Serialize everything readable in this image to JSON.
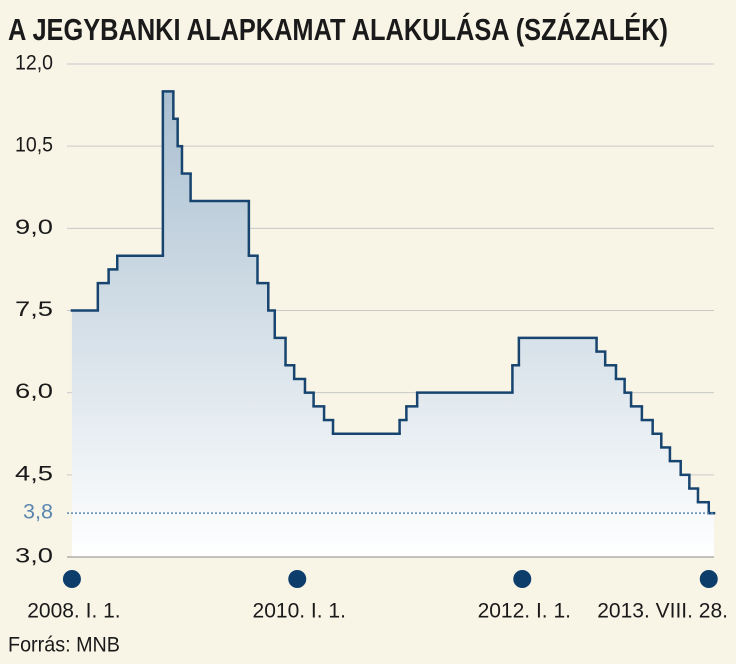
{
  "chart_data": {
    "type": "step",
    "title": "A JEGYBANKI ALAPKAMAT ALAKULÁSA (SZÁZALÉK)",
    "source": "Forrás: MNB",
    "xlim": [
      "2007-12-16",
      "2013-09-14"
    ],
    "xticks": [
      {
        "value": "2008-01-01",
        "label": "2008. I. 1."
      },
      {
        "value": "2010-01-01",
        "label": "2010. I. 1."
      },
      {
        "value": "2012-01-01",
        "label": "2012. I. 1."
      },
      {
        "value": "2013-08-28",
        "label": "2013. VIII. 28."
      }
    ],
    "ylim": [
      3,
      12
    ],
    "yticks": [
      {
        "value": 3,
        "label": "3,0"
      },
      {
        "value": 4.5,
        "label": "4,5"
      },
      {
        "value": 6,
        "label": "6,0"
      },
      {
        "value": 7.5,
        "label": "7,5"
      },
      {
        "value": 9,
        "label": "9,0"
      },
      {
        "value": 10.5,
        "label": "10,5"
      },
      {
        "value": 12,
        "label": "12,0"
      }
    ],
    "reference_line": {
      "value": 3.8,
      "label": "3,8",
      "color": "#5b86b0"
    },
    "grid": true,
    "series": [
      {
        "color": "#17456f",
        "x": [
          "2008-01-01",
          "2008-03-25",
          "2008-04-29",
          "2008-05-27",
          "2008-10-22",
          "2008-11-25",
          "2008-12-09",
          "2008-12-23",
          "2009-01-20",
          "2009-07-28",
          "2009-08-25",
          "2009-09-29",
          "2009-10-20",
          "2009-11-24",
          "2009-12-22",
          "2010-01-26",
          "2010-02-23",
          "2010-03-29",
          "2010-04-27",
          "2010-11-29",
          "2010-12-21",
          "2011-01-25",
          "2011-11-30",
          "2011-12-21",
          "2012-08-29",
          "2012-09-26",
          "2012-10-31",
          "2012-11-28",
          "2012-12-19",
          "2013-01-23",
          "2013-02-27",
          "2013-03-27",
          "2013-04-24",
          "2013-05-29",
          "2013-06-26",
          "2013-07-24",
          "2013-08-28"
        ],
        "values": [
          7.5,
          8,
          8.25,
          8.5,
          11.5,
          11,
          10.5,
          10,
          9.5,
          8.5,
          8,
          7.5,
          7,
          6.5,
          6.25,
          6,
          5.75,
          5.5,
          5.25,
          5.5,
          5.75,
          6,
          6.5,
          7,
          6.75,
          6.5,
          6.25,
          6,
          5.75,
          5.5,
          5.25,
          5,
          4.75,
          4.5,
          4.25,
          4,
          3.8
        ]
      }
    ]
  }
}
